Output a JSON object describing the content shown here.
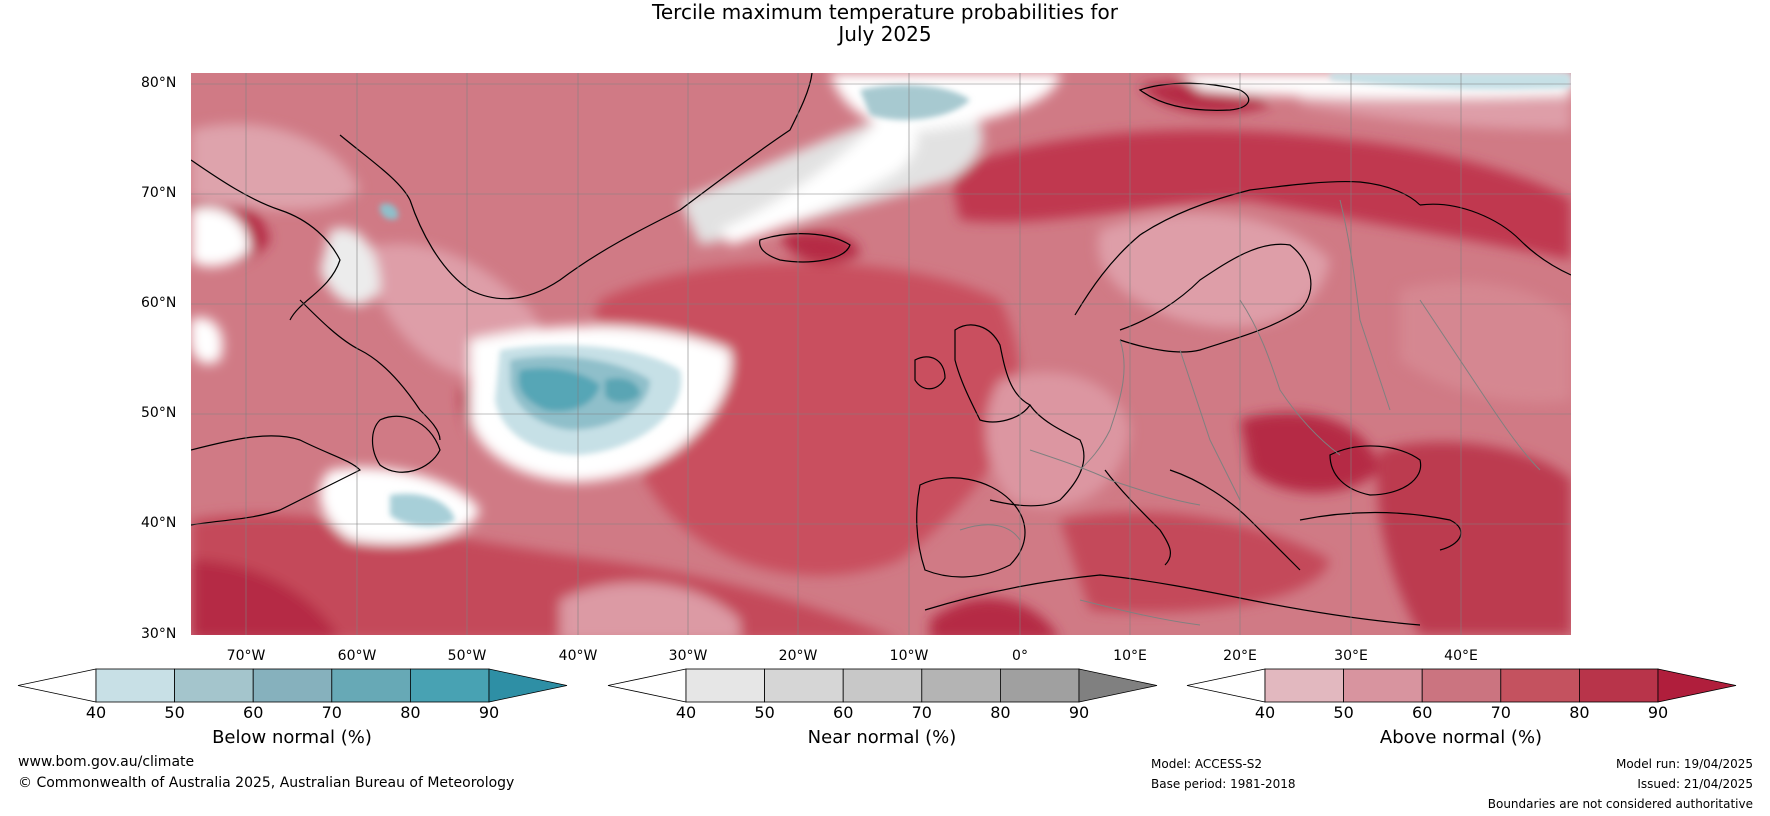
{
  "title": {
    "line1": "Tercile maximum temperature probabilities for",
    "line2": "July 2025"
  },
  "map": {
    "lat_labels": [
      "80°N",
      "70°N",
      "60°N",
      "50°N",
      "40°N",
      "30°N"
    ],
    "lon_labels": [
      "70°W",
      "60°W",
      "50°W",
      "40°W",
      "30°W",
      "20°W",
      "10°W",
      "0°",
      "10°E",
      "20°E",
      "30°E",
      "40°E"
    ],
    "colors": {
      "ocean_base": "#d07a85",
      "deep_red": "#b52a44",
      "mid_red": "#c9505f",
      "light_red": "#de9ea8",
      "near_normal_grey": "#dcdcdc",
      "white": "#ffffff",
      "blue_light": "#c6e0e6",
      "blue_mid": "#8fbfca",
      "blue_dark": "#57a6b6",
      "coastline": "#000000",
      "borders": "#808080"
    }
  },
  "colorbars": [
    {
      "label": "Below normal (%)",
      "ticks": [
        "40",
        "50",
        "60",
        "70",
        "80",
        "90"
      ],
      "colors": [
        "#ffffff",
        "#c8e0e6",
        "#a4c5cc",
        "#86b1bd",
        "#67a9b6",
        "#48a2b3",
        "#2e8fa5"
      ]
    },
    {
      "label": "Near normal (%)",
      "ticks": [
        "40",
        "50",
        "60",
        "70",
        "80",
        "90"
      ],
      "colors": [
        "#ffffff",
        "#e6e6e6",
        "#d6d6d6",
        "#c8c8c8",
        "#b4b4b4",
        "#a0a0a0",
        "#808080"
      ]
    },
    {
      "label": "Above normal (%)",
      "ticks": [
        "40",
        "50",
        "60",
        "70",
        "80",
        "90"
      ],
      "colors": [
        "#ffffff",
        "#e2b8bf",
        "#d8949f",
        "#cb7480",
        "#c4525f",
        "#b8344a",
        "#b01e3c"
      ]
    }
  ],
  "footer": {
    "website": "www.bom.gov.au/climate",
    "copyright": "© Commonwealth of Australia 2025, Australian Bureau of Meteorology",
    "model": "Model: ACCESS-S2",
    "base_period": "Base period: 1981-2018",
    "model_run": "Model run: 19/04/2025",
    "issued": "Issued: 21/04/2025",
    "disclaimer": "Boundaries are not considered authoritative"
  }
}
